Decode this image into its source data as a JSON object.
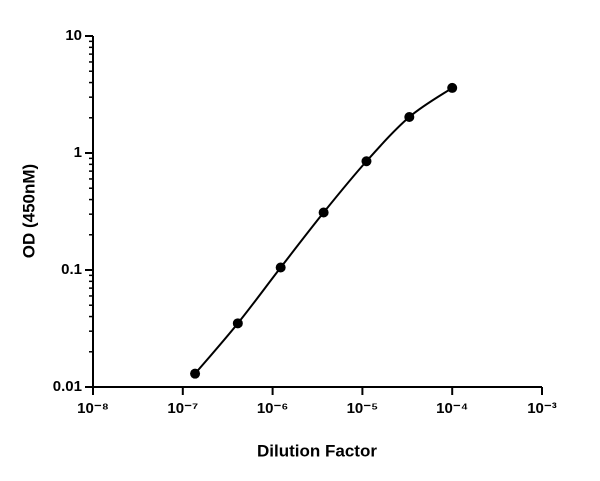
{
  "chart_data": {
    "type": "scatter",
    "xlabel": "Dilution Factor",
    "ylabel": "OD (450nM)",
    "x": [
      1.37e-07,
      4.1e-07,
      1.23e-06,
      3.7e-06,
      1.11e-05,
      3.33e-05,
      0.0001
    ],
    "series": [
      {
        "color": "#000000",
        "values": [
          0.013,
          0.035,
          0.105,
          0.31,
          0.85,
          2.03,
          3.6
        ]
      }
    ],
    "xscale": "log",
    "yscale": "log",
    "xlim": [
      1e-08,
      0.001
    ],
    "xticks": [
      {
        "value": 1e-08,
        "label": "10⁻⁸"
      },
      {
        "value": 1e-07,
        "label": "10⁻⁷"
      },
      {
        "value": 1e-06,
        "label": "10⁻⁶"
      },
      {
        "value": 1e-05,
        "label": "10⁻⁵"
      },
      {
        "value": 0.0001,
        "label": "10⁻⁴"
      },
      {
        "value": 0.001,
        "label": "10⁻³"
      }
    ],
    "ylim": [
      0.01,
      10
    ],
    "yticks": [
      0.01,
      0.1,
      1,
      10
    ],
    "grid": false
  }
}
